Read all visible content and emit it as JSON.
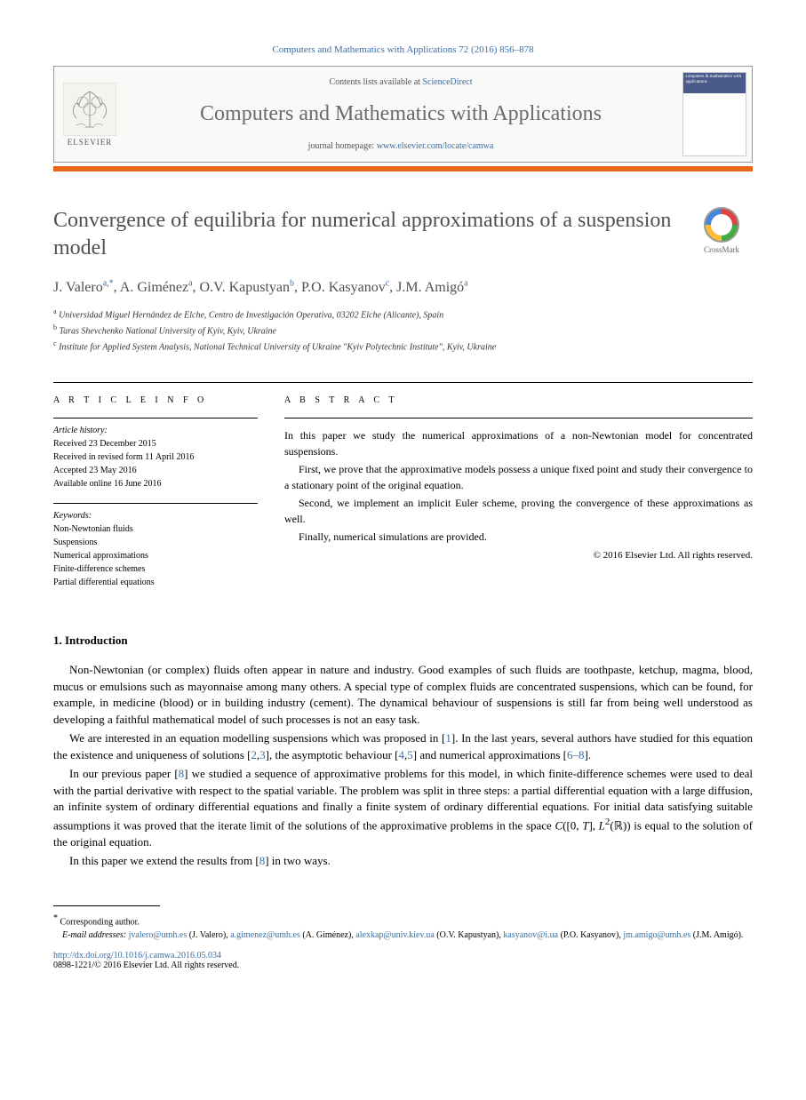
{
  "header": {
    "journal_ref": "Computers and Mathematics with Applications 72 (2016) 856–878",
    "contents_text": "Contents lists available at ",
    "contents_link": "ScienceDirect",
    "journal_name": "Computers and Mathematics with Applications",
    "homepage_text": "journal homepage: ",
    "homepage_link": "www.elsevier.com/locate/camwa",
    "elsevier_label": "ELSEVIER",
    "cover_title": "computers & mathematics with applications"
  },
  "article": {
    "title": "Convergence of equilibria for numerical approximations of a suspension model",
    "crossmark_label": "CrossMark",
    "authors_html": "J. Valero",
    "authors": [
      {
        "name": "J. Valero",
        "marks": "a,*"
      },
      {
        "name": "A. Giménez",
        "marks": "a"
      },
      {
        "name": "O.V. Kapustyan",
        "marks": "b"
      },
      {
        "name": "P.O. Kasyanov",
        "marks": "c"
      },
      {
        "name": "J.M. Amigó",
        "marks": "a"
      }
    ],
    "affiliations": [
      {
        "mark": "a",
        "text": "Universidad Miguel Hernández de Elche, Centro de Investigación Operativa, 03202 Elche (Alicante), Spain"
      },
      {
        "mark": "b",
        "text": "Taras Shevchenko National University of Kyiv, Kyiv, Ukraine"
      },
      {
        "mark": "c",
        "text": "Institute for Applied System Analysis, National Technical University of Ukraine \"Kyiv Polytechnic Institute\", Kyiv, Ukraine"
      }
    ]
  },
  "info": {
    "label": "A R T I C L E   I N F O",
    "history_heading": "Article history:",
    "history": [
      "Received 23 December 2015",
      "Received in revised form 11 April 2016",
      "Accepted 23 May 2016",
      "Available online 16 June 2016"
    ],
    "keywords_heading": "Keywords:",
    "keywords": [
      "Non-Newtonian fluids",
      "Suspensions",
      "Numerical approximations",
      "Finite-difference schemes",
      "Partial differential equations"
    ]
  },
  "abstract": {
    "label": "A B S T R A C T",
    "paragraphs": [
      "In this paper we study the numerical approximations of a non-Newtonian model for concentrated suspensions.",
      "First, we prove that the approximative models possess a unique fixed point and study their convergence to a stationary point of the original equation.",
      "Second, we implement an implicit Euler scheme, proving the convergence of these approximations as well.",
      "Finally, numerical simulations are provided."
    ],
    "copyright": "© 2016 Elsevier Ltd. All rights reserved."
  },
  "intro": {
    "heading": "1.  Introduction",
    "paragraphs": [
      "Non-Newtonian (or complex) fluids often appear in nature and industry. Good examples of such fluids are toothpaste, ketchup, magma, blood, mucus or emulsions such as mayonnaise among many others. A special type of complex fluids are concentrated suspensions, which can be found, for example, in medicine (blood) or in building industry (cement). The dynamical behaviour of suspensions is still far from being well understood as developing a faithful mathematical model of such processes is not an easy task.",
      "We are interested in an equation modelling suspensions which was proposed in [<a>1</a>]. In the last years, several authors have studied for this equation the existence and uniqueness of solutions [<a>2</a>,<a>3</a>], the asymptotic behaviour [<a>4</a>,<a>5</a>] and numerical approximations [<a>6–8</a>].",
      "In our previous paper [<a>8</a>] we studied a sequence of approximative problems for this model, in which finite-difference schemes were used to deal with the partial derivative with respect to the spatial variable. The problem was split in three steps: a partial differential equation with a large diffusion, an infinite system of ordinary differential equations and finally a finite system of ordinary differential equations. For initial data satisfying suitable assumptions it was proved that the iterate limit of the solutions of the approximative problems in the space <i>C</i>([0, <i>T</i>], <i>L</i><sup>2</sup>(ℝ)) is equal to the solution of the original equation.",
      "In this paper we extend the results from [<a>8</a>] in two ways."
    ]
  },
  "footnotes": {
    "corresponding": "Corresponding author.",
    "email_label": "E-mail addresses:",
    "emails": [
      {
        "addr": "jvalero@umh.es",
        "who": "(J. Valero)"
      },
      {
        "addr": "a.gimenez@umh.es",
        "who": "(A. Giménez)"
      },
      {
        "addr": "alexkap@univ.kiev.ua",
        "who": "(O.V. Kapustyan)"
      },
      {
        "addr": "kasyanov@i.ua",
        "who": "(P.O. Kasyanov)"
      },
      {
        "addr": "jm.amigo@umh.es",
        "who": "(J.M. Amigó)"
      }
    ],
    "doi": "http://dx.doi.org/10.1016/j.camwa.2016.05.034",
    "issn": "0898-1221/© 2016 Elsevier Ltd. All rights reserved."
  },
  "colors": {
    "link": "#3a6ea5",
    "orange": "#e8671c",
    "title_gray": "#505050"
  }
}
